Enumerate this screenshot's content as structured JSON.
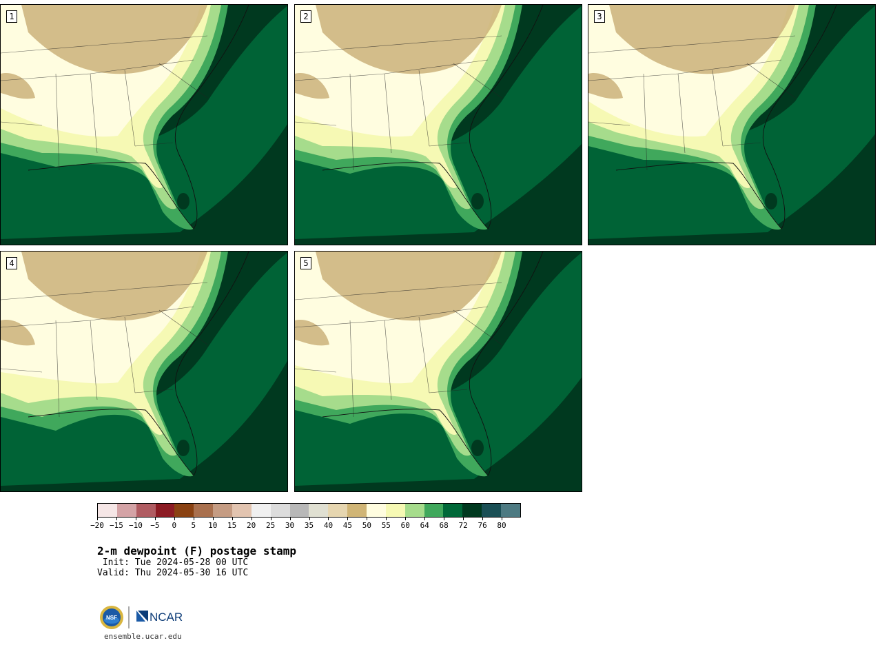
{
  "panels": [
    {
      "label": "1"
    },
    {
      "label": "2"
    },
    {
      "label": "3"
    },
    {
      "label": "4"
    },
    {
      "label": "5"
    }
  ],
  "colorbar": {
    "colors": [
      "#f5e6e6",
      "#d4a3a6",
      "#b05c62",
      "#8c1c24",
      "#8a4212",
      "#a9704e",
      "#c59c83",
      "#e2c4b0",
      "#f0f0f0",
      "#dcdcdc",
      "#b8b8b8",
      "#e0e0d2",
      "#e6d6b0",
      "#d0b576",
      "#fffde0",
      "#f6f9b4",
      "#a6dc8c",
      "#40a85c",
      "#006838",
      "#00391f",
      "#1a4f55",
      "#4d7a82"
    ],
    "tick_labels": [
      "−20",
      "−15",
      "−10",
      "−5",
      "0",
      "5",
      "10",
      "15",
      "20",
      "25",
      "30",
      "35",
      "40",
      "45",
      "50",
      "55",
      "60",
      "64",
      "68",
      "72",
      "76",
      "80"
    ]
  },
  "map_palette": {
    "dry": "#cbb27a",
    "pale": "#fffde0",
    "yellow": "#f6f9b4",
    "light_green": "#a6dc8c",
    "mid_green": "#40a85c",
    "green": "#006838",
    "dark_green": "#00391f"
  },
  "title": "2-m dewpoint (F) postage stamp",
  "init": " Init: Tue 2024-05-28 00 UTC",
  "valid": "Valid: Thu 2024-05-30 16 UTC",
  "logo": {
    "left_seal": "NSF",
    "right_text": "NCAR"
  },
  "website": "ensemble.ucar.edu"
}
